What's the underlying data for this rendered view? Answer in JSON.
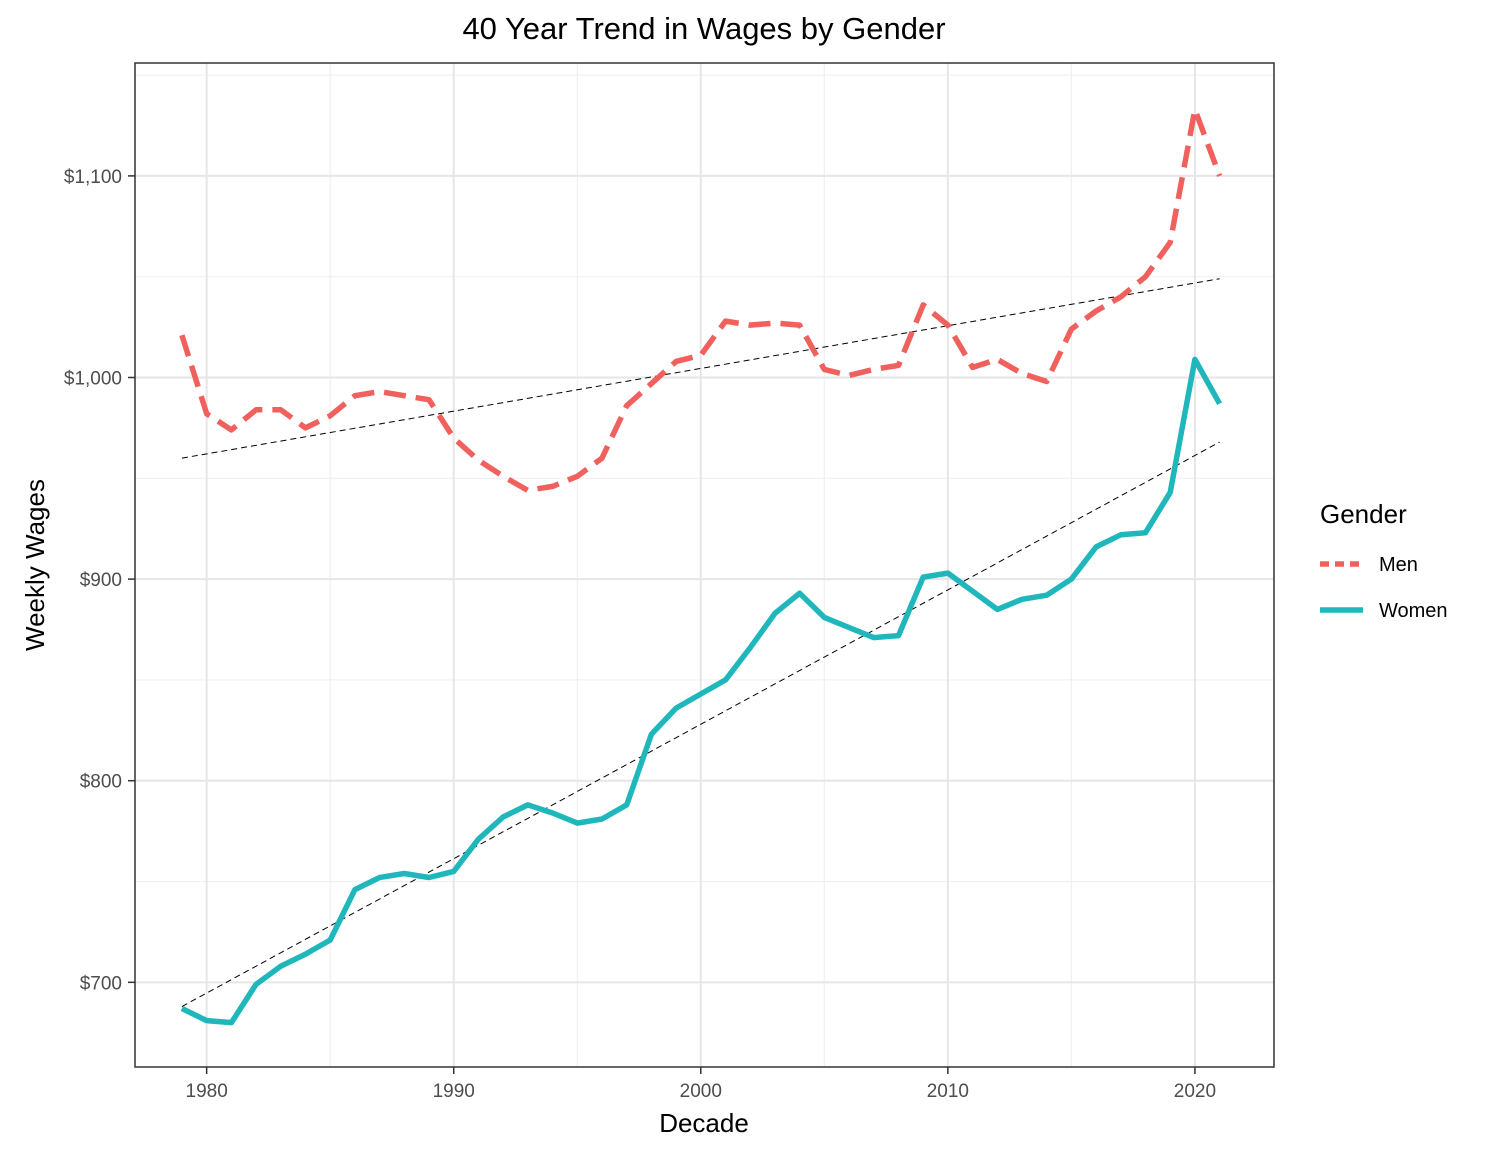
{
  "chart_data": {
    "type": "line",
    "title": "40 Year Trend in Wages by Gender",
    "xlabel": "Decade",
    "ylabel": "Weekly Wages",
    "xlim": [
      1977.1,
      2023.2
    ],
    "ylim": [
      658,
      1156
    ],
    "x_ticks": [
      1980,
      1990,
      2000,
      2010,
      2020
    ],
    "y_ticks": [
      700,
      800,
      900,
      1000,
      1100
    ],
    "y_tick_labels": [
      "$700",
      "$800",
      "$900",
      "$1,000",
      "$1,100"
    ],
    "grid": true,
    "legend": {
      "title": "Gender",
      "position": "right"
    },
    "x": [
      1979,
      1980,
      1981,
      1982,
      1983,
      1984,
      1985,
      1986,
      1987,
      1988,
      1989,
      1990,
      1991,
      1992,
      1993,
      1994,
      1995,
      1996,
      1997,
      1998,
      1999,
      2000,
      2001,
      2002,
      2003,
      2004,
      2005,
      2006,
      2007,
      2008,
      2009,
      2010,
      2011,
      2012,
      2013,
      2014,
      2015,
      2016,
      2017,
      2018,
      2019,
      2020,
      2021
    ],
    "series": [
      {
        "name": "Men",
        "color": "#F0605D",
        "line_style": "dashed",
        "values": [
          1021,
          982,
          974,
          984,
          984,
          975,
          981,
          991,
          993,
          991,
          989,
          970,
          959,
          951,
          944,
          946,
          951,
          960,
          986,
          997,
          1008,
          1011,
          1028,
          1026,
          1027,
          1026,
          1004,
          1001,
          1004,
          1006,
          1036,
          1026,
          1005,
          1009,
          1002,
          998,
          1024,
          1033,
          1040,
          1050,
          1067,
          1133,
          1100
        ]
      },
      {
        "name": "Women",
        "color": "#1FB7BB",
        "line_style": "solid",
        "values": [
          687,
          681,
          680,
          699,
          708,
          714,
          721,
          746,
          752,
          754,
          752,
          755,
          771,
          782,
          788,
          784,
          779,
          781,
          788,
          823,
          836,
          843,
          850,
          866,
          883,
          893,
          881,
          876,
          871,
          872,
          901,
          903,
          894,
          885,
          890,
          892,
          900,
          916,
          922,
          923,
          943,
          1009,
          987
        ]
      }
    ],
    "trend_lines": [
      {
        "series": "Men",
        "x": [
          1979,
          2021
        ],
        "y": [
          960,
          1049
        ]
      },
      {
        "series": "Women",
        "x": [
          1979,
          2021
        ],
        "y": [
          688,
          968
        ]
      }
    ]
  }
}
